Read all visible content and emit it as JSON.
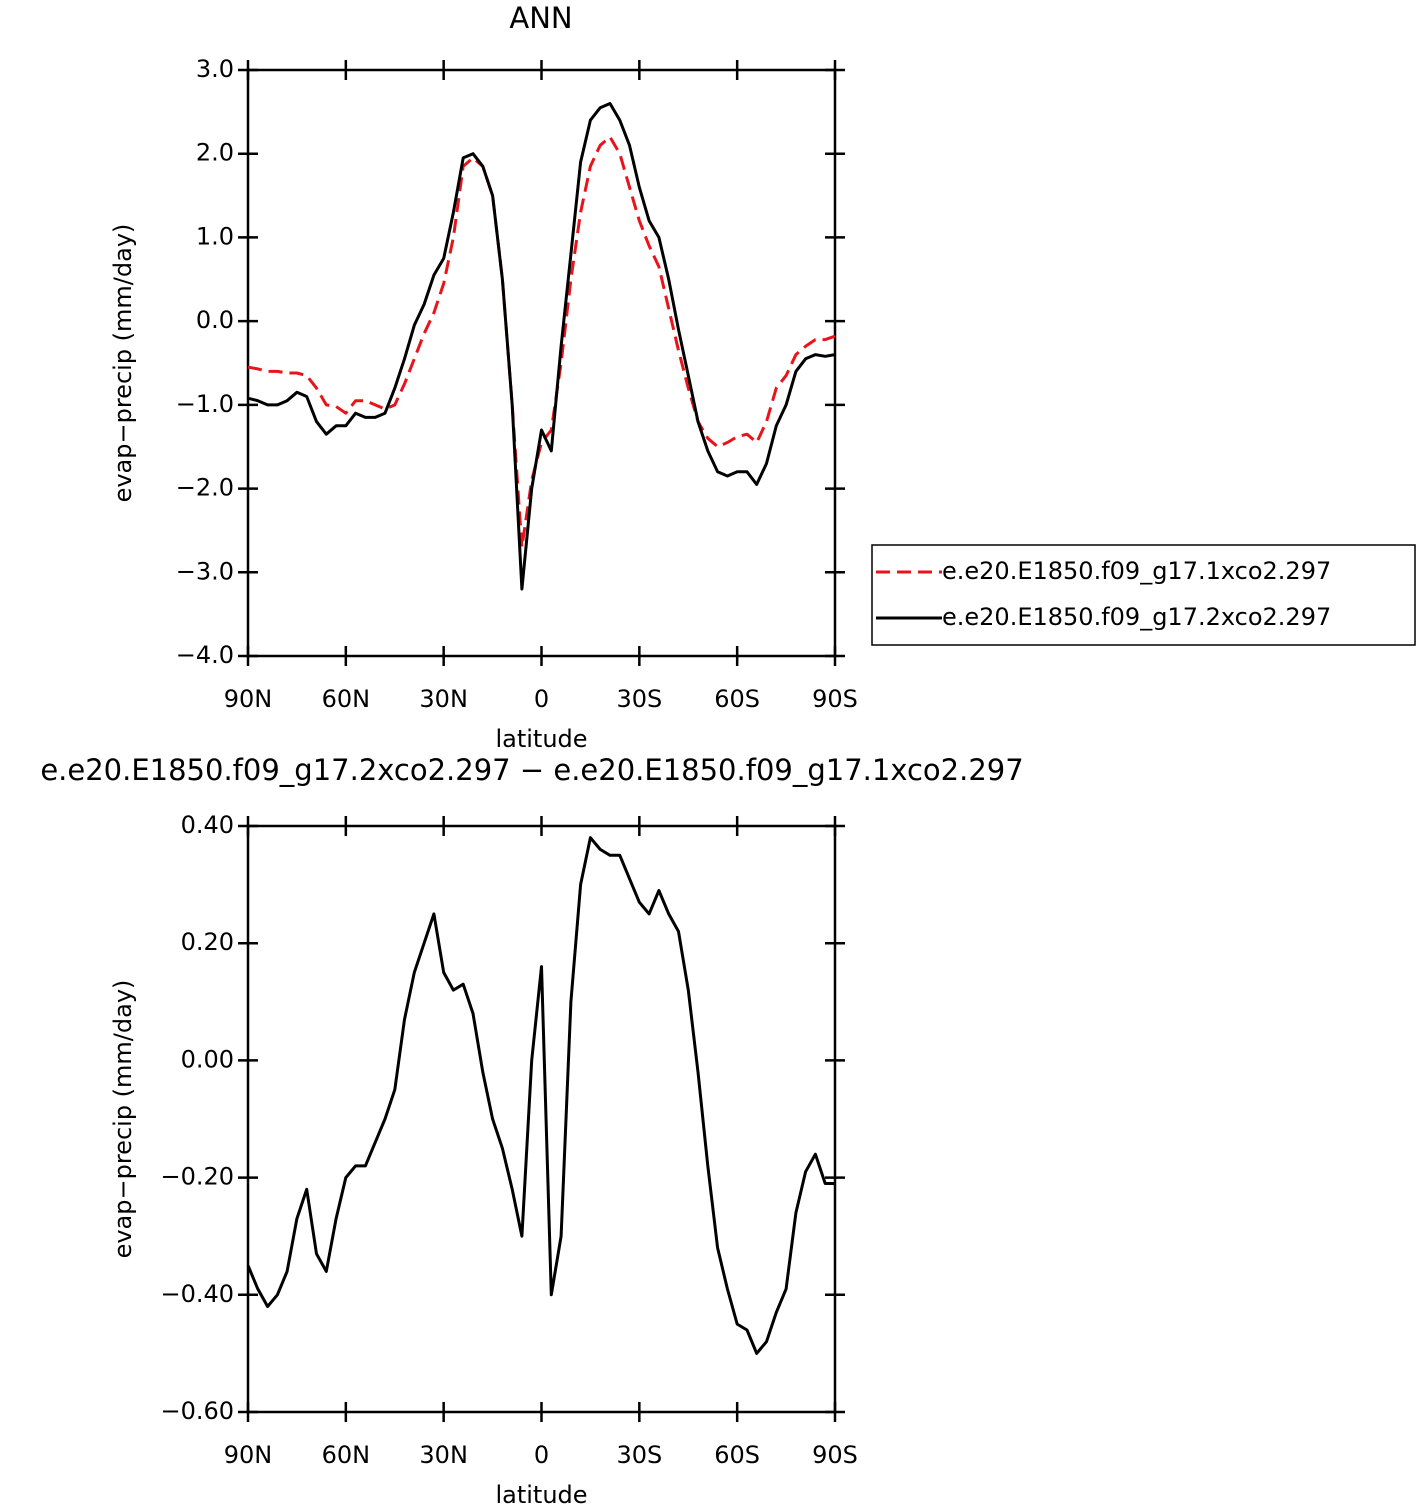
{
  "chart_data": [
    {
      "type": "line",
      "title": "ANN",
      "x_label": "latitude",
      "y_label": "evap−precip (mm/day)",
      "x": [
        90,
        87,
        84,
        81,
        78,
        75,
        72,
        69,
        66,
        63,
        60,
        57,
        54,
        51,
        48,
        45,
        42,
        39,
        36,
        33,
        30,
        27,
        24,
        21,
        18,
        15,
        12,
        9,
        6,
        3,
        0,
        -3,
        -6,
        -9,
        -12,
        -15,
        -18,
        -21,
        -24,
        -27,
        -30,
        -33,
        -36,
        -39,
        -42,
        -45,
        -48,
        -51,
        -54,
        -57,
        -60,
        -63,
        -66,
        -69,
        -72,
        -75,
        -78,
        -81,
        -84,
        -87,
        -90
      ],
      "series": [
        {
          "name": "e.e20.E1850.f09_g17.1xco2.297",
          "color": "#e8141b",
          "line_style": "dashed",
          "values": [
            -0.55,
            -0.57,
            -0.6,
            -0.6,
            -0.62,
            -0.62,
            -0.65,
            -0.8,
            -1.0,
            -1.02,
            -1.1,
            -0.95,
            -0.95,
            -1.0,
            -1.05,
            -1.0,
            -0.75,
            -0.45,
            -0.15,
            0.1,
            0.45,
            1.0,
            1.85,
            1.95,
            1.85,
            1.5,
            0.5,
            -1.0,
            -2.7,
            -1.9,
            -1.45,
            -1.3,
            -0.5,
            0.5,
            1.3,
            1.85,
            2.1,
            2.2,
            2.0,
            1.6,
            1.2,
            0.9,
            0.65,
            0.15,
            -0.35,
            -0.8,
            -1.2,
            -1.4,
            -1.5,
            -1.45,
            -1.38,
            -1.35,
            -1.45,
            -1.2,
            -0.8,
            -0.65,
            -0.4,
            -0.3,
            -0.22,
            -0.22,
            -0.18
          ]
        },
        {
          "name": "e.e20.E1850.f09_g17.2xco2.297",
          "color": "#000000",
          "line_style": "solid",
          "values": [
            -0.92,
            -0.95,
            -1.0,
            -1.0,
            -0.95,
            -0.85,
            -0.9,
            -1.2,
            -1.35,
            -1.25,
            -1.25,
            -1.1,
            -1.15,
            -1.15,
            -1.1,
            -0.8,
            -0.45,
            -0.05,
            0.2,
            0.55,
            0.75,
            1.3,
            1.95,
            2.0,
            1.85,
            1.5,
            0.5,
            -1.0,
            -3.2,
            -2.0,
            -1.3,
            -1.55,
            -0.3,
            0.8,
            1.9,
            2.4,
            2.55,
            2.6,
            2.4,
            2.1,
            1.6,
            1.2,
            1.0,
            0.5,
            -0.1,
            -0.65,
            -1.2,
            -1.55,
            -1.8,
            -1.85,
            -1.8,
            -1.8,
            -1.95,
            -1.7,
            -1.25,
            -1.0,
            -0.6,
            -0.45,
            -0.4,
            -0.42,
            -0.4
          ]
        }
      ],
      "xlim": [
        90,
        -90
      ],
      "xticks": [
        {
          "value": 90,
          "label": "90N"
        },
        {
          "value": 60,
          "label": "60N"
        },
        {
          "value": 30,
          "label": "30N"
        },
        0,
        {
          "value": -30,
          "label": "30S"
        },
        {
          "value": -60,
          "label": "60S"
        },
        {
          "value": -90,
          "label": "90S"
        }
      ],
      "ylim": [
        -4,
        3
      ],
      "yticks": [
        {
          "value": 3,
          "label": "3.0"
        },
        {
          "value": 2,
          "label": "2.0"
        },
        {
          "value": 1,
          "label": "1.0"
        },
        {
          "value": 0,
          "label": "0.0"
        },
        {
          "value": -1,
          "label": "−1.0"
        },
        {
          "value": -2,
          "label": "−2.0"
        },
        {
          "value": -3,
          "label": "−3.0"
        },
        {
          "value": -4,
          "label": "−4.0"
        }
      ],
      "legend": "right"
    },
    {
      "type": "line",
      "title": "e.e20.E1850.f09_g17.2xco2.297 − e.e20.E1850.f09_g17.1xco2.297",
      "x_label": "latitude",
      "y_label": "evap−precip (mm/day)",
      "x": [
        90,
        87,
        84,
        81,
        78,
        75,
        72,
        69,
        66,
        63,
        60,
        57,
        54,
        51,
        48,
        45,
        42,
        39,
        36,
        33,
        30,
        27,
        24,
        21,
        18,
        15,
        12,
        9,
        6,
        3,
        0,
        -3,
        -6,
        -9,
        -12,
        -15,
        -18,
        -21,
        -24,
        -27,
        -30,
        -33,
        -36,
        -39,
        -42,
        -45,
        -48,
        -51,
        -54,
        -57,
        -60,
        -63,
        -66,
        -69,
        -72,
        -75,
        -78,
        -81,
        -84,
        -87,
        -90
      ],
      "series": [
        {
          "color": "#000000",
          "line_style": "solid",
          "values": [
            -0.35,
            -0.39,
            -0.42,
            -0.4,
            -0.36,
            -0.27,
            -0.22,
            -0.33,
            -0.36,
            -0.27,
            -0.2,
            -0.18,
            -0.18,
            -0.14,
            -0.1,
            -0.05,
            0.07,
            0.15,
            0.2,
            0.25,
            0.15,
            0.12,
            0.13,
            0.08,
            -0.02,
            -0.1,
            -0.15,
            -0.22,
            -0.3,
            0.0,
            0.16,
            -0.4,
            -0.3,
            0.1,
            0.3,
            0.38,
            0.36,
            0.35,
            0.35,
            0.31,
            0.27,
            0.25,
            0.29,
            0.25,
            0.22,
            0.12,
            -0.02,
            -0.18,
            -0.32,
            -0.39,
            -0.45,
            -0.46,
            -0.5,
            -0.48,
            -0.43,
            -0.39,
            -0.26,
            -0.19,
            -0.16,
            -0.21,
            -0.21
          ]
        }
      ],
      "xlim": [
        90,
        -90
      ],
      "xticks": [
        {
          "value": 90,
          "label": "90N"
        },
        {
          "value": 60,
          "label": "60N"
        },
        {
          "value": 30,
          "label": "30N"
        },
        0,
        {
          "value": -30,
          "label": "30S"
        },
        {
          "value": -60,
          "label": "60S"
        },
        {
          "value": -90,
          "label": "90S"
        }
      ],
      "ylim": [
        -0.6,
        0.4
      ],
      "yticks": [
        {
          "value": 0.4,
          "label": "0.40"
        },
        {
          "value": 0.2,
          "label": "0.20"
        },
        {
          "value": 0,
          "label": "0.00"
        },
        {
          "value": -0.2,
          "label": "−0.20"
        },
        {
          "value": -0.4,
          "label": "−0.40"
        },
        {
          "value": -0.6,
          "label": "−0.60"
        }
      ]
    }
  ]
}
